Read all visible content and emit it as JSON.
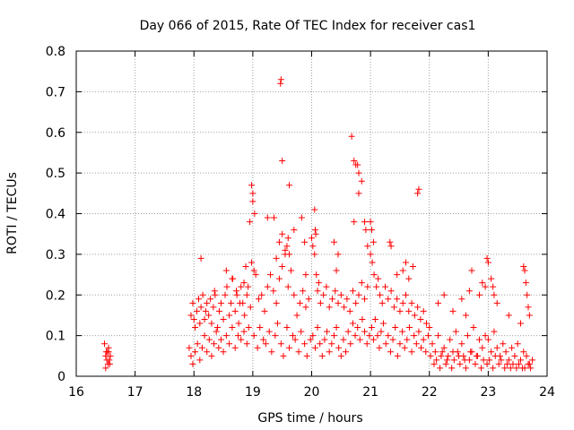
{
  "chart_data": {
    "type": "scatter",
    "title": "Day 066 of 2015, Rate Of TEC Index for receiver cas1",
    "xlabel": "GPS time / hours",
    "ylabel": "ROTI / TECUs",
    "xlim": [
      16,
      24
    ],
    "ylim": [
      0,
      0.8
    ],
    "x_ticks": [
      "16",
      "17",
      "18",
      "19",
      "20",
      "21",
      "22",
      "23",
      "24"
    ],
    "y_ticks": [
      "0",
      "0.1",
      "0.2",
      "0.3",
      "0.4",
      "0.5",
      "0.6",
      "0.7",
      "0.8"
    ],
    "grid": true,
    "legend": "none",
    "marker": "+",
    "colors": {
      "series": "#ff0000",
      "grid": "#a0a0a0",
      "axis": "#000000"
    },
    "series": [
      {
        "x": [
          16.48,
          16.5,
          16.52,
          16.53,
          16.55,
          16.57,
          16.58,
          16.5,
          16.54,
          16.56,
          16.51,
          16.55,
          17.92,
          17.95,
          17.98,
          18.0,
          18.02,
          18.05,
          18.08,
          18.1,
          18.12,
          18.15,
          18.18,
          18.2,
          18.22,
          18.25,
          18.28,
          18.3,
          18.33,
          18.36,
          18.4,
          18.43,
          18.46,
          18.5,
          18.53,
          18.56,
          18.6,
          18.63,
          18.66,
          18.7,
          18.73,
          18.76,
          18.8,
          18.83,
          18.86,
          18.9,
          18.93,
          18.96,
          17.95,
          17.98,
          18.02,
          18.06,
          18.1,
          18.14,
          18.18,
          18.22,
          18.26,
          18.3,
          18.34,
          18.38,
          18.42,
          18.46,
          18.5,
          18.55,
          18.6,
          18.65,
          18.7,
          18.75,
          18.8,
          18.85,
          18.9,
          18.12,
          18.35,
          18.55,
          18.65,
          18.72,
          18.78,
          18.85,
          18.88,
          18.92,
          18.95,
          18.98,
          19.0,
          19.02,
          19.05,
          19.1,
          19.15,
          19.2,
          19.25,
          19.3,
          19.35,
          19.4,
          19.45,
          19.5,
          19.55,
          19.6,
          19.65,
          19.7,
          19.75,
          19.8,
          19.85,
          19.9,
          19.95,
          19.02,
          19.08,
          19.12,
          19.18,
          19.22,
          19.28,
          19.32,
          19.38,
          19.42,
          19.48,
          19.52,
          19.58,
          19.62,
          19.68,
          19.72,
          19.78,
          19.82,
          19.88,
          19.92,
          19.98,
          18.98,
          19.0,
          19.03,
          19.25,
          19.36,
          19.4,
          19.45,
          19.5,
          19.55,
          19.62,
          19.7,
          19.83,
          19.88,
          19.9,
          19.47,
          19.48,
          19.5,
          19.58,
          19.6,
          19.62,
          20.0,
          20.02,
          20.05,
          20.08,
          20.1,
          20.12,
          20.15,
          20.2,
          20.25,
          20.3,
          20.35,
          20.4,
          20.45,
          20.5,
          20.55,
          20.6,
          20.65,
          20.7,
          20.75,
          20.8,
          20.85,
          20.9,
          20.95,
          20.02,
          20.06,
          20.1,
          20.14,
          20.18,
          20.22,
          20.26,
          20.3,
          20.34,
          20.38,
          20.42,
          20.46,
          20.5,
          20.54,
          20.58,
          20.62,
          20.66,
          20.7,
          20.74,
          20.78,
          20.82,
          20.86,
          20.9,
          20.94,
          20.98,
          20.05,
          20.06,
          20.07,
          20.38,
          20.42,
          20.45,
          20.72,
          20.8,
          20.85,
          20.9,
          20.92,
          20.95,
          20.68,
          20.72,
          20.75,
          20.78,
          20.8,
          21.0,
          21.03,
          21.06,
          21.1,
          21.13,
          21.16,
          21.2,
          21.25,
          21.3,
          21.35,
          21.4,
          21.45,
          21.5,
          21.55,
          21.6,
          21.65,
          21.7,
          21.75,
          21.8,
          21.85,
          21.9,
          21.95,
          21.02,
          21.05,
          21.08,
          21.12,
          21.15,
          21.18,
          21.22,
          21.26,
          21.3,
          21.34,
          21.38,
          21.42,
          21.46,
          21.5,
          21.54,
          21.58,
          21.62,
          21.66,
          21.7,
          21.74,
          21.78,
          21.82,
          21.86,
          21.9,
          21.94,
          21.98,
          21.0,
          21.02,
          21.05,
          21.33,
          21.35,
          21.8,
          21.82,
          21.6,
          21.55,
          21.45,
          21.65,
          21.72,
          22.0,
          22.05,
          22.1,
          22.15,
          22.2,
          22.25,
          22.3,
          22.35,
          22.4,
          22.45,
          22.5,
          22.55,
          22.6,
          22.65,
          22.7,
          22.75,
          22.8,
          22.85,
          22.9,
          22.95,
          22.02,
          22.08,
          22.12,
          22.18,
          22.22,
          22.28,
          22.32,
          22.38,
          22.42,
          22.48,
          22.52,
          22.58,
          22.62,
          22.68,
          22.72,
          22.78,
          22.82,
          22.88,
          22.92,
          22.98,
          22.15,
          22.25,
          22.4,
          22.55,
          22.62,
          22.68,
          22.72,
          22.85,
          22.9,
          22.95,
          23.0,
          23.05,
          23.1,
          23.15,
          23.2,
          23.25,
          23.3,
          23.35,
          23.4,
          23.45,
          23.5,
          23.55,
          23.6,
          23.65,
          23.7,
          23.75,
          23.02,
          23.08,
          23.12,
          23.18,
          23.22,
          23.28,
          23.32,
          23.38,
          23.42,
          23.48,
          23.52,
          23.58,
          23.62,
          23.68,
          23.72,
          22.98,
          23.0,
          23.05,
          23.08,
          23.1,
          23.15,
          23.35,
          23.55,
          23.6,
          23.62,
          23.64,
          23.66,
          23.68,
          23.7
        ],
        "y": [
          0.08,
          0.05,
          0.04,
          0.06,
          0.07,
          0.03,
          0.05,
          0.02,
          0.03,
          0.04,
          0.06,
          0.06,
          0.07,
          0.15,
          0.18,
          0.14,
          0.12,
          0.16,
          0.19,
          0.13,
          0.17,
          0.2,
          0.14,
          0.16,
          0.18,
          0.15,
          0.19,
          0.13,
          0.17,
          0.2,
          0.12,
          0.16,
          0.18,
          0.14,
          0.2,
          0.22,
          0.15,
          0.18,
          0.24,
          0.16,
          0.2,
          0.13,
          0.22,
          0.18,
          0.15,
          0.2,
          0.12,
          0.17,
          0.05,
          0.03,
          0.06,
          0.08,
          0.04,
          0.07,
          0.1,
          0.06,
          0.09,
          0.05,
          0.08,
          0.11,
          0.07,
          0.09,
          0.06,
          0.1,
          0.08,
          0.12,
          0.07,
          0.1,
          0.09,
          0.11,
          0.08,
          0.29,
          0.21,
          0.26,
          0.24,
          0.21,
          0.18,
          0.23,
          0.27,
          0.22,
          0.38,
          0.28,
          0.45,
          0.26,
          0.25,
          0.19,
          0.2,
          0.16,
          0.22,
          0.25,
          0.21,
          0.18,
          0.24,
          0.27,
          0.3,
          0.22,
          0.26,
          0.2,
          0.15,
          0.18,
          0.21,
          0.17,
          0.19,
          0.1,
          0.07,
          0.12,
          0.09,
          0.08,
          0.11,
          0.06,
          0.1,
          0.13,
          0.08,
          0.05,
          0.12,
          0.07,
          0.1,
          0.09,
          0.06,
          0.11,
          0.08,
          0.05,
          0.09,
          0.47,
          0.43,
          0.4,
          0.39,
          0.39,
          0.29,
          0.33,
          0.53,
          0.31,
          0.47,
          0.36,
          0.39,
          0.33,
          0.25,
          0.72,
          0.73,
          0.35,
          0.32,
          0.34,
          0.3,
          0.34,
          0.32,
          0.3,
          0.25,
          0.21,
          0.23,
          0.18,
          0.2,
          0.22,
          0.17,
          0.19,
          0.21,
          0.18,
          0.2,
          0.17,
          0.19,
          0.16,
          0.21,
          0.18,
          0.2,
          0.23,
          0.19,
          0.22,
          0.1,
          0.07,
          0.12,
          0.08,
          0.05,
          0.09,
          0.11,
          0.06,
          0.08,
          0.1,
          0.12,
          0.07,
          0.05,
          0.09,
          0.06,
          0.11,
          0.08,
          0.13,
          0.1,
          0.12,
          0.09,
          0.14,
          0.11,
          0.08,
          0.1,
          0.41,
          0.36,
          0.35,
          0.33,
          0.26,
          0.3,
          0.38,
          0.45,
          0.48,
          0.38,
          0.36,
          0.32,
          0.59,
          0.53,
          0.52,
          0.52,
          0.5,
          0.3,
          0.28,
          0.25,
          0.22,
          0.24,
          0.2,
          0.18,
          0.22,
          0.19,
          0.21,
          0.17,
          0.19,
          0.16,
          0.18,
          0.2,
          0.16,
          0.18,
          0.15,
          0.17,
          0.14,
          0.16,
          0.13,
          0.12,
          0.09,
          0.14,
          0.1,
          0.07,
          0.11,
          0.13,
          0.08,
          0.1,
          0.06,
          0.09,
          0.12,
          0.05,
          0.08,
          0.11,
          0.07,
          0.09,
          0.12,
          0.06,
          0.1,
          0.08,
          0.11,
          0.07,
          0.09,
          0.06,
          0.1,
          0.38,
          0.36,
          0.33,
          0.33,
          0.32,
          0.45,
          0.46,
          0.28,
          0.26,
          0.25,
          0.24,
          0.27,
          0.12,
          0.08,
          0.06,
          0.1,
          0.05,
          0.07,
          0.04,
          0.09,
          0.06,
          0.11,
          0.05,
          0.08,
          0.04,
          0.1,
          0.06,
          0.12,
          0.05,
          0.09,
          0.07,
          0.1,
          0.05,
          0.03,
          0.04,
          0.02,
          0.06,
          0.03,
          0.05,
          0.02,
          0.04,
          0.06,
          0.03,
          0.05,
          0.02,
          0.04,
          0.06,
          0.03,
          0.05,
          0.02,
          0.04,
          0.03,
          0.18,
          0.2,
          0.16,
          0.19,
          0.15,
          0.21,
          0.26,
          0.2,
          0.23,
          0.22,
          0.09,
          0.06,
          0.11,
          0.07,
          0.05,
          0.08,
          0.06,
          0.04,
          0.07,
          0.05,
          0.08,
          0.04,
          0.06,
          0.05,
          0.03,
          0.04,
          0.04,
          0.02,
          0.05,
          0.03,
          0.04,
          0.02,
          0.03,
          0.02,
          0.03,
          0.02,
          0.03,
          0.02,
          0.02,
          0.03,
          0.02,
          0.29,
          0.28,
          0.24,
          0.22,
          0.2,
          0.18,
          0.15,
          0.13,
          0.27,
          0.26,
          0.23,
          0.2,
          0.17,
          0.15
        ]
      }
    ]
  }
}
